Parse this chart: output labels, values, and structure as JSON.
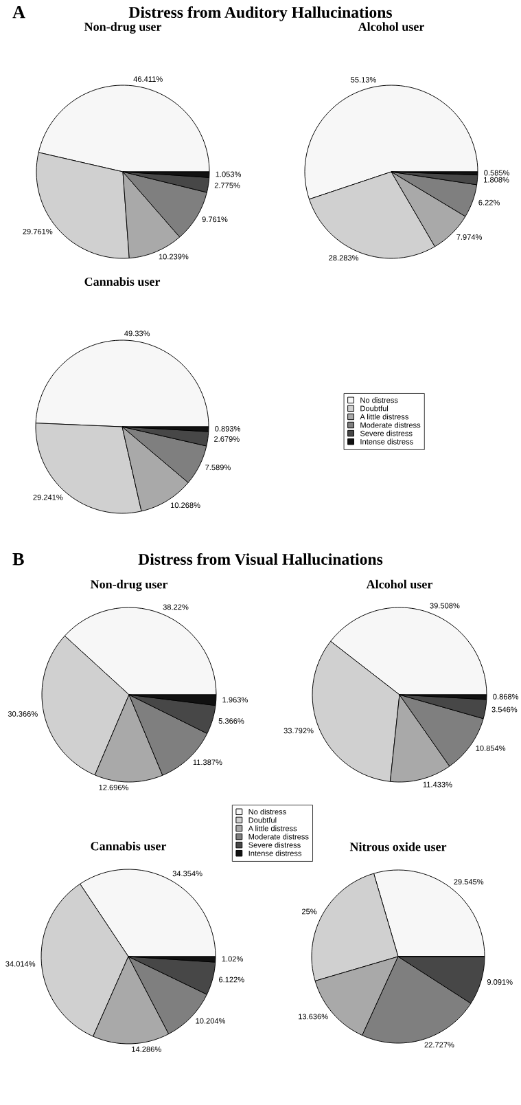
{
  "chart_data": [
    {
      "type": "other",
      "title": "Distress from Auditory Hallucinations",
      "annotations": [
        "A"
      ]
    },
    {
      "type": "pie",
      "title": "Non-drug user",
      "categories": [
        null,
        null,
        null,
        null,
        null,
        null
      ],
      "values": [
        46.411,
        29.761,
        10.239,
        9.761,
        2.775,
        1.053
      ],
      "value_labels": [
        "46.411%",
        "29.761%",
        "10.239%",
        "9.761%",
        "2.775%",
        "1.053%"
      ],
      "colors": [
        "#f7f7f7",
        "#d0d0d0",
        "#a9a9a9",
        "#7f7f7f",
        "#474747",
        "#111111"
      ]
    },
    {
      "type": "pie",
      "title": "Alcohol user",
      "categories": [
        null,
        null,
        null,
        null,
        null,
        null
      ],
      "values": [
        55.13,
        28.283,
        7.974,
        6.22,
        1.808,
        0.585
      ],
      "value_labels": [
        "55.13%",
        "28.283%",
        "7.974%",
        "6.22%",
        "1.808%",
        "0.585%"
      ],
      "colors": [
        "#f7f7f7",
        "#d0d0d0",
        "#a9a9a9",
        "#7f7f7f",
        "#474747",
        "#111111"
      ]
    },
    {
      "type": "pie",
      "title": "Cannabis user",
      "categories": [
        "No distress",
        "Doubtful",
        "A little distress",
        "Moderate distress",
        "Severe distress",
        "Intense distress"
      ],
      "values": [
        49.33,
        29.241,
        10.268,
        7.589,
        2.679,
        0.893
      ],
      "value_labels": [
        "49.33%",
        "29.241%",
        "10.268%",
        "7.589%",
        "2.679%",
        "0.893%"
      ],
      "colors": [
        "#f7f7f7",
        "#d0d0d0",
        "#a9a9a9",
        "#7f7f7f",
        "#474747",
        "#111111"
      ],
      "legend": "right"
    },
    {
      "type": "other",
      "title": "Distress from Visual Hallucinations",
      "annotations": [
        "B"
      ]
    },
    {
      "type": "pie",
      "title": "Non-drug user",
      "categories": [
        "No distress",
        "Doubtful",
        "A little distress",
        "Moderate distress",
        "Severe distress",
        "Intense distress"
      ],
      "values": [
        38.22,
        30.366,
        12.696,
        11.387,
        5.366,
        1.963
      ],
      "value_labels": [
        "38.22%",
        "30.366%",
        "12.696%",
        "11.387%",
        "5.366%",
        "1.963%"
      ],
      "colors": [
        "#f7f7f7",
        "#d0d0d0",
        "#a9a9a9",
        "#7f7f7f",
        "#474747",
        "#111111"
      ],
      "legend": "bottom right"
    },
    {
      "type": "pie",
      "title": "Alcohol user",
      "categories": [
        null,
        null,
        null,
        null,
        null,
        null
      ],
      "values": [
        39.508,
        33.792,
        11.433,
        10.854,
        3.546,
        0.868
      ],
      "value_labels": [
        "39.508%",
        "33.792%",
        "11.433%",
        "10.854%",
        "3.546%",
        "0.868%"
      ],
      "colors": [
        "#f7f7f7",
        "#d0d0d0",
        "#a9a9a9",
        "#7f7f7f",
        "#474747",
        "#111111"
      ]
    },
    {
      "type": "pie",
      "title": "Cannabis user",
      "categories": [
        null,
        null,
        null,
        null,
        null,
        null
      ],
      "values": [
        34.354,
        34.014,
        14.286,
        10.204,
        6.122,
        1.02
      ],
      "value_labels": [
        "34.354%",
        "34.014%",
        "14.286%",
        "10.204%",
        "6.122%",
        "1.02%"
      ],
      "colors": [
        "#f7f7f7",
        "#d0d0d0",
        "#a9a9a9",
        "#7f7f7f",
        "#474747",
        "#111111"
      ]
    },
    {
      "type": "pie",
      "title": "Nitrous oxide user",
      "categories": [
        null,
        null,
        null,
        null,
        null,
        null
      ],
      "values": [
        29.545,
        25,
        13.636,
        22.727,
        9.091,
        0
      ],
      "value_labels": [
        "29.545%",
        "25%",
        "13.636%",
        "22.727%",
        "9.091%",
        null
      ],
      "colors": [
        "#f7f7f7",
        "#d0d0d0",
        "#a9a9a9",
        "#7f7f7f",
        "#474747",
        "#111111"
      ]
    }
  ]
}
